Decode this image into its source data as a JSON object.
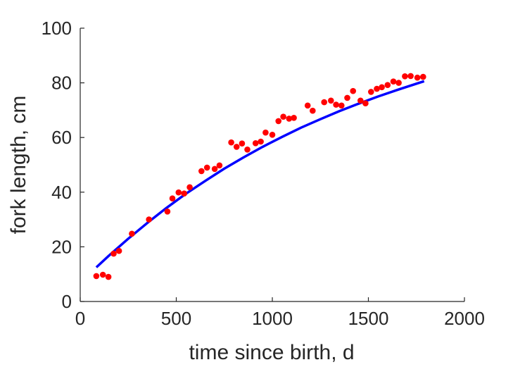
{
  "chart_data": {
    "type": "scatter",
    "title": "",
    "xlabel": "time since birth, d",
    "ylabel": "fork length, cm",
    "xlim": [
      0,
      2000
    ],
    "ylim": [
      0,
      100
    ],
    "xticks": [
      0,
      500,
      1000,
      1500,
      2000
    ],
    "yticks": [
      0,
      20,
      40,
      60,
      80,
      100
    ],
    "grid": false,
    "legend": "none",
    "series": [
      {
        "kind": "scatter",
        "color": "#ff0000",
        "points": [
          [
            84,
            9.3
          ],
          [
            118,
            9.8
          ],
          [
            147,
            9.0
          ],
          [
            174,
            17.5
          ],
          [
            202,
            18.5
          ],
          [
            269,
            24.8
          ],
          [
            358,
            30.0
          ],
          [
            454,
            32.9
          ],
          [
            480,
            37.7
          ],
          [
            512,
            39.9
          ],
          [
            541,
            39.5
          ],
          [
            570,
            41.8
          ],
          [
            631,
            47.7
          ],
          [
            660,
            49.0
          ],
          [
            700,
            48.5
          ],
          [
            725,
            49.8
          ],
          [
            786,
            58.2
          ],
          [
            814,
            56.6
          ],
          [
            842,
            57.8
          ],
          [
            870,
            55.6
          ],
          [
            913,
            57.9
          ],
          [
            940,
            58.5
          ],
          [
            965,
            61.8
          ],
          [
            1000,
            61.0
          ],
          [
            1032,
            66.0
          ],
          [
            1057,
            67.6
          ],
          [
            1087,
            66.9
          ],
          [
            1112,
            67.2
          ],
          [
            1184,
            71.7
          ],
          [
            1210,
            69.8
          ],
          [
            1270,
            72.9
          ],
          [
            1305,
            73.5
          ],
          [
            1332,
            72.0
          ],
          [
            1360,
            71.7
          ],
          [
            1390,
            74.5
          ],
          [
            1420,
            77.0
          ],
          [
            1459,
            73.5
          ],
          [
            1485,
            72.5
          ],
          [
            1514,
            76.7
          ],
          [
            1544,
            77.8
          ],
          [
            1570,
            78.4
          ],
          [
            1600,
            79.2
          ],
          [
            1630,
            80.5
          ],
          [
            1658,
            80.0
          ],
          [
            1690,
            82.4
          ],
          [
            1720,
            82.5
          ],
          [
            1755,
            81.9
          ],
          [
            1785,
            82.2
          ]
        ]
      },
      {
        "kind": "line",
        "color": "#0000ff",
        "curve": "von Bertalanffy fit",
        "x": [
          84,
          150,
          250,
          350,
          450,
          550,
          650,
          750,
          850,
          950,
          1050,
          1150,
          1250,
          1350,
          1450,
          1550,
          1650,
          1750,
          1790
        ],
        "y": [
          12.5,
          16.8,
          23.0,
          28.8,
          34.3,
          39.4,
          44.1,
          48.6,
          52.7,
          56.6,
          60.2,
          63.6,
          66.7,
          69.7,
          72.4,
          75.0,
          77.4,
          79.7,
          80.6
        ]
      }
    ]
  }
}
